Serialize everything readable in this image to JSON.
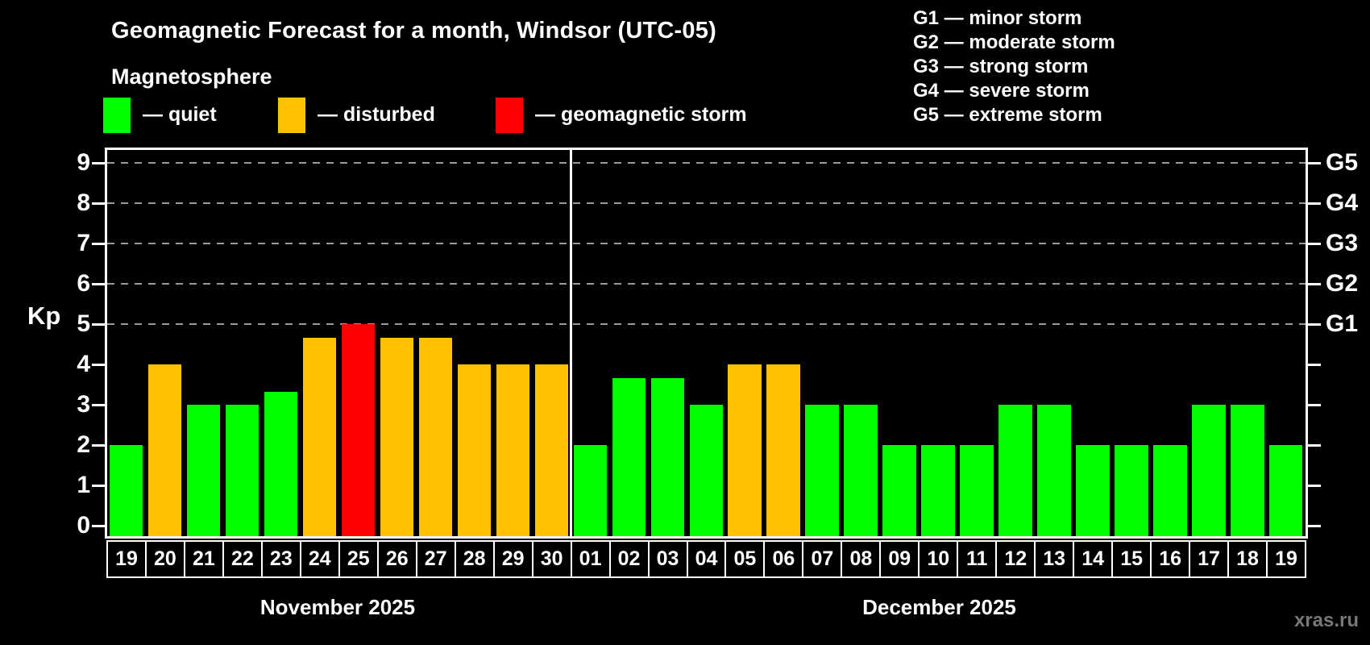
{
  "title": "Geomagnetic Forecast for a month, Windsor (UTC-05)",
  "subtitle": "Magnetosphere",
  "watermark": "xras.ru",
  "legend": [
    {
      "label": "— quiet",
      "status": "quiet",
      "color": "#00ff00"
    },
    {
      "label": "— disturbed",
      "status": "disturbed",
      "color": "#ffc000"
    },
    {
      "label": "— geomagnetic storm",
      "status": "storm",
      "color": "#ff0000"
    }
  ],
  "g_legend": [
    "G1 — minor storm",
    "G2 — moderate storm",
    "G3 — strong storm",
    "G4 — severe storm",
    "G5 — extreme storm"
  ],
  "chart_data": {
    "type": "bar",
    "ylabel": "Kp",
    "ylim": [
      0,
      9.4
    ],
    "yticks": [
      0,
      1,
      2,
      3,
      4,
      5,
      6,
      7,
      8,
      9
    ],
    "right_axis": [
      {
        "kp": 5,
        "label": "G1"
      },
      {
        "kp": 6,
        "label": "G2"
      },
      {
        "kp": 7,
        "label": "G3"
      },
      {
        "kp": 8,
        "label": "G4"
      },
      {
        "kp": 9,
        "label": "G5"
      }
    ],
    "gridlines_kp": [
      5,
      6,
      7,
      8,
      9
    ],
    "grid": "dashed",
    "legend_position": "top",
    "colors": {
      "quiet": "#00ff00",
      "disturbed": "#ffc000",
      "storm": "#ff0000"
    },
    "months": [
      {
        "label": "November 2025",
        "days": [
          {
            "day": "19",
            "kp": 2,
            "status": "quiet"
          },
          {
            "day": "20",
            "kp": 4,
            "status": "disturbed"
          },
          {
            "day": "21",
            "kp": 3,
            "status": "quiet"
          },
          {
            "day": "22",
            "kp": 3,
            "status": "quiet"
          },
          {
            "day": "23",
            "kp": 3.33,
            "status": "quiet"
          },
          {
            "day": "24",
            "kp": 4.67,
            "status": "disturbed"
          },
          {
            "day": "25",
            "kp": 5,
            "status": "storm"
          },
          {
            "day": "26",
            "kp": 4.67,
            "status": "disturbed"
          },
          {
            "day": "27",
            "kp": 4.67,
            "status": "disturbed"
          },
          {
            "day": "28",
            "kp": 4,
            "status": "disturbed"
          },
          {
            "day": "29",
            "kp": 4,
            "status": "disturbed"
          },
          {
            "day": "30",
            "kp": 4,
            "status": "disturbed"
          }
        ]
      },
      {
        "label": "December 2025",
        "days": [
          {
            "day": "01",
            "kp": 2,
            "status": "quiet"
          },
          {
            "day": "02",
            "kp": 3.67,
            "status": "quiet"
          },
          {
            "day": "03",
            "kp": 3.67,
            "status": "quiet"
          },
          {
            "day": "04",
            "kp": 3,
            "status": "quiet"
          },
          {
            "day": "05",
            "kp": 4,
            "status": "disturbed"
          },
          {
            "day": "06",
            "kp": 4,
            "status": "disturbed"
          },
          {
            "day": "07",
            "kp": 3,
            "status": "quiet"
          },
          {
            "day": "08",
            "kp": 3,
            "status": "quiet"
          },
          {
            "day": "09",
            "kp": 2,
            "status": "quiet"
          },
          {
            "day": "10",
            "kp": 2,
            "status": "quiet"
          },
          {
            "day": "11",
            "kp": 2,
            "status": "quiet"
          },
          {
            "day": "12",
            "kp": 3,
            "status": "quiet"
          },
          {
            "day": "13",
            "kp": 3,
            "status": "quiet"
          },
          {
            "day": "14",
            "kp": 2,
            "status": "quiet"
          },
          {
            "day": "15",
            "kp": 2,
            "status": "quiet"
          },
          {
            "day": "16",
            "kp": 2,
            "status": "quiet"
          },
          {
            "day": "17",
            "kp": 3,
            "status": "quiet"
          },
          {
            "day": "18",
            "kp": 3,
            "status": "quiet"
          },
          {
            "day": "19",
            "kp": 2,
            "status": "quiet"
          }
        ]
      }
    ]
  }
}
